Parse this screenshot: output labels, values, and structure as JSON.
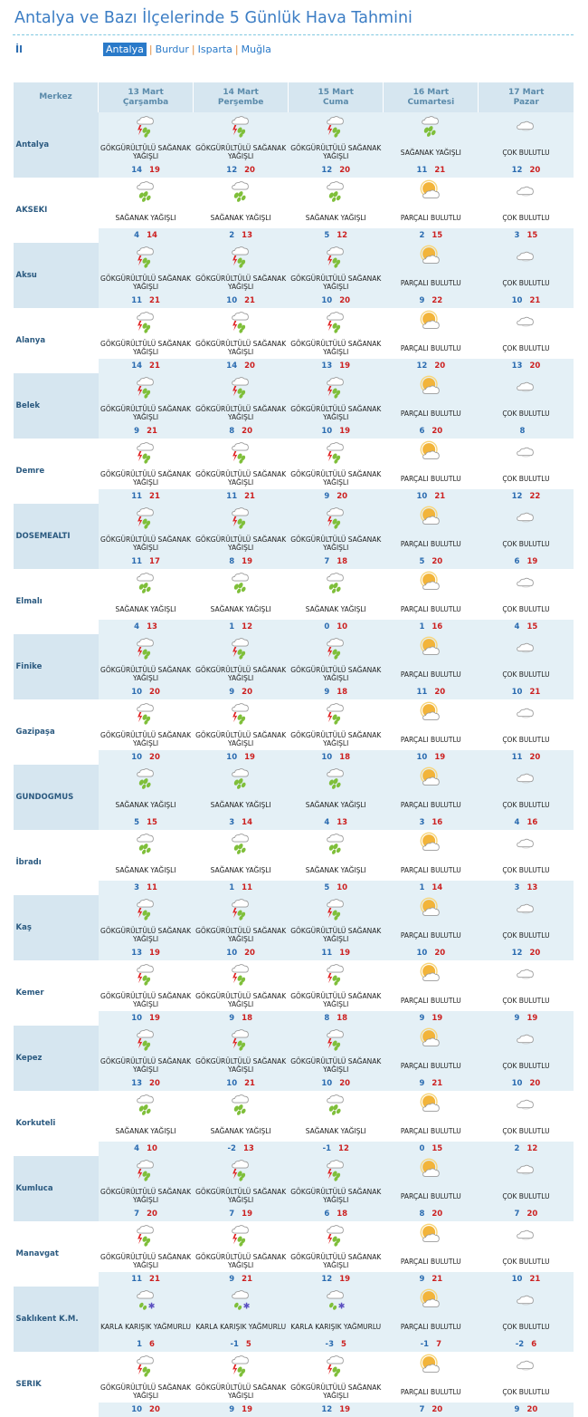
{
  "title": "Antalya ve Bazı İlçelerinde 5 Günlük Hava Tahmini",
  "il_label": "İl",
  "tabs": [
    "Antalya",
    "Burdur",
    "Isparta",
    "Muğla"
  ],
  "header": {
    "merkez": "Merkez",
    "days": [
      {
        "date": "13 Mart",
        "day": "Çarşamba"
      },
      {
        "date": "14 Mart",
        "day": "Perşembe"
      },
      {
        "date": "15 Mart",
        "day": "Cuma"
      },
      {
        "date": "16 Mart",
        "day": "Cumartesi"
      },
      {
        "date": "17 Mart",
        "day": "Pazar"
      }
    ]
  },
  "conditions": {
    "GSY": "GÖKGÜRÜLTÜLÜ SAĞANAK YAĞIŞLI",
    "SY": "SAĞANAK YAĞIŞLI",
    "PB": "PARÇALI BULUTLU",
    "CB": "ÇOK BULUTLU",
    "KKY": "KARLA KARIŞIK YAĞMURLU"
  },
  "icons": {
    "GSY": "thunder-shower-icon",
    "SY": "shower-icon",
    "PB": "partly-cloudy-icon",
    "CB": "cloudy-icon",
    "KKY": "sleet-icon"
  },
  "rows": [
    {
      "name": "Antalya",
      "days": [
        [
          "GSY",
          "14",
          "19"
        ],
        [
          "GSY",
          "12",
          "20"
        ],
        [
          "GSY",
          "12",
          "20"
        ],
        [
          "SY",
          "11",
          "21"
        ],
        [
          "CB",
          "12",
          "20"
        ]
      ]
    },
    {
      "name": "AKSEKI",
      "days": [
        [
          "SY",
          "4",
          "14"
        ],
        [
          "SY",
          "2",
          "13"
        ],
        [
          "SY",
          "5",
          "12"
        ],
        [
          "PB",
          "2",
          "15"
        ],
        [
          "CB",
          "3",
          "15"
        ]
      ]
    },
    {
      "name": "Aksu",
      "days": [
        [
          "GSY",
          "11",
          "21"
        ],
        [
          "GSY",
          "10",
          "21"
        ],
        [
          "GSY",
          "10",
          "20"
        ],
        [
          "PB",
          "9",
          "22"
        ],
        [
          "CB",
          "10",
          "21"
        ]
      ]
    },
    {
      "name": "Alanya",
      "days": [
        [
          "GSY",
          "14",
          "21"
        ],
        [
          "GSY",
          "14",
          "20"
        ],
        [
          "GSY",
          "13",
          "19"
        ],
        [
          "PB",
          "12",
          "20"
        ],
        [
          "CB",
          "13",
          "20"
        ]
      ]
    },
    {
      "name": "Belek",
      "days": [
        [
          "GSY",
          "9",
          "21"
        ],
        [
          "GSY",
          "8",
          "20"
        ],
        [
          "GSY",
          "10",
          "19"
        ],
        [
          "PB",
          "6",
          "20"
        ],
        [
          "CB",
          "8",
          ""
        ]
      ]
    },
    {
      "name": "Demre",
      "days": [
        [
          "GSY",
          "11",
          "21"
        ],
        [
          "GSY",
          "11",
          "21"
        ],
        [
          "GSY",
          "9",
          "20"
        ],
        [
          "PB",
          "10",
          "21"
        ],
        [
          "CB",
          "12",
          "22"
        ]
      ]
    },
    {
      "name": "DOSEMEALTI",
      "days": [
        [
          "GSY",
          "11",
          "17"
        ],
        [
          "GSY",
          "8",
          "19"
        ],
        [
          "GSY",
          "7",
          "18"
        ],
        [
          "PB",
          "5",
          "20"
        ],
        [
          "CB",
          "6",
          "19"
        ]
      ]
    },
    {
      "name": "Elmalı",
      "days": [
        [
          "SY",
          "4",
          "13"
        ],
        [
          "SY",
          "1",
          "12"
        ],
        [
          "SY",
          "0",
          "10"
        ],
        [
          "PB",
          "1",
          "16"
        ],
        [
          "CB",
          "4",
          "15"
        ]
      ]
    },
    {
      "name": "Finike",
      "days": [
        [
          "GSY",
          "10",
          "20"
        ],
        [
          "GSY",
          "9",
          "20"
        ],
        [
          "GSY",
          "9",
          "18"
        ],
        [
          "PB",
          "11",
          "20"
        ],
        [
          "CB",
          "10",
          "21"
        ]
      ]
    },
    {
      "name": "Gazipaşa",
      "days": [
        [
          "GSY",
          "10",
          "20"
        ],
        [
          "GSY",
          "10",
          "19"
        ],
        [
          "GSY",
          "10",
          "18"
        ],
        [
          "PB",
          "10",
          "19"
        ],
        [
          "CB",
          "11",
          "20"
        ]
      ]
    },
    {
      "name": "GUNDOGMUS",
      "days": [
        [
          "SY",
          "5",
          "15"
        ],
        [
          "SY",
          "3",
          "14"
        ],
        [
          "SY",
          "4",
          "13"
        ],
        [
          "PB",
          "3",
          "16"
        ],
        [
          "CB",
          "4",
          "16"
        ]
      ]
    },
    {
      "name": "İbradı",
      "days": [
        [
          "SY",
          "3",
          "11"
        ],
        [
          "SY",
          "1",
          "11"
        ],
        [
          "SY",
          "5",
          "10"
        ],
        [
          "PB",
          "1",
          "14"
        ],
        [
          "CB",
          "3",
          "13"
        ]
      ]
    },
    {
      "name": "Kaş",
      "days": [
        [
          "GSY",
          "13",
          "19"
        ],
        [
          "GSY",
          "10",
          "20"
        ],
        [
          "GSY",
          "11",
          "19"
        ],
        [
          "PB",
          "10",
          "20"
        ],
        [
          "CB",
          "12",
          "20"
        ]
      ]
    },
    {
      "name": "Kemer",
      "days": [
        [
          "GSY",
          "10",
          "19"
        ],
        [
          "GSY",
          "9",
          "18"
        ],
        [
          "GSY",
          "8",
          "18"
        ],
        [
          "PB",
          "9",
          "19"
        ],
        [
          "CB",
          "9",
          "19"
        ]
      ]
    },
    {
      "name": "Kepez",
      "days": [
        [
          "GSY",
          "13",
          "20"
        ],
        [
          "GSY",
          "10",
          "21"
        ],
        [
          "GSY",
          "10",
          "20"
        ],
        [
          "PB",
          "9",
          "21"
        ],
        [
          "CB",
          "10",
          "20"
        ]
      ]
    },
    {
      "name": "Korkuteli",
      "days": [
        [
          "SY",
          "4",
          "10"
        ],
        [
          "SY",
          "-2",
          "13"
        ],
        [
          "SY",
          "-1",
          "12"
        ],
        [
          "PB",
          "0",
          "15"
        ],
        [
          "CB",
          "2",
          "12"
        ]
      ]
    },
    {
      "name": "Kumluca",
      "days": [
        [
          "GSY",
          "7",
          "20"
        ],
        [
          "GSY",
          "7",
          "19"
        ],
        [
          "GSY",
          "6",
          "18"
        ],
        [
          "PB",
          "8",
          "20"
        ],
        [
          "CB",
          "7",
          "20"
        ]
      ]
    },
    {
      "name": "Manavgat",
      "days": [
        [
          "GSY",
          "11",
          "21"
        ],
        [
          "GSY",
          "9",
          "21"
        ],
        [
          "GSY",
          "12",
          "19"
        ],
        [
          "PB",
          "9",
          "21"
        ],
        [
          "CB",
          "10",
          "21"
        ]
      ]
    },
    {
      "name": "Saklıkent K.M.",
      "days": [
        [
          "KKY",
          "1",
          "6"
        ],
        [
          "KKY",
          "-1",
          "5"
        ],
        [
          "KKY",
          "-3",
          "5"
        ],
        [
          "PB",
          "-1",
          "7"
        ],
        [
          "CB",
          "-2",
          "6"
        ]
      ]
    },
    {
      "name": "SERIK",
      "days": [
        [
          "GSY",
          "10",
          "20"
        ],
        [
          "GSY",
          "9",
          "19"
        ],
        [
          "GSY",
          "12",
          "19"
        ],
        [
          "PB",
          "7",
          "20"
        ],
        [
          "CB",
          "9",
          "20"
        ]
      ]
    }
  ]
}
